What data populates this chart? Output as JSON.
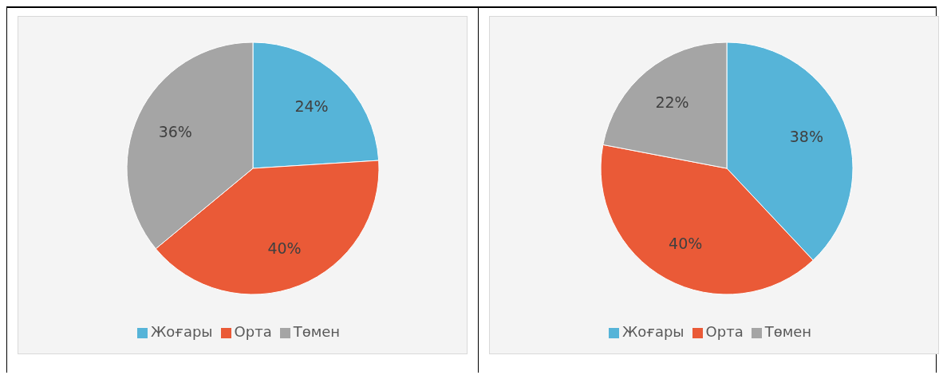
{
  "chart_data": [
    {
      "type": "pie",
      "categories": [
        "Жоғары",
        "Орта",
        "Төмен"
      ],
      "values": [
        24,
        40,
        36
      ],
      "colors": [
        "#56b4d8",
        "#ea5a37",
        "#a5a5a5"
      ],
      "value_labels": [
        "24%",
        "40%",
        "36%"
      ],
      "legend": "bottom"
    },
    {
      "type": "pie",
      "categories": [
        "Жоғары",
        "Орта",
        "Төмен"
      ],
      "values": [
        38,
        40,
        22
      ],
      "colors": [
        "#56b4d8",
        "#ea5a37",
        "#a5a5a5"
      ],
      "value_labels": [
        "38%",
        "40%",
        "22%"
      ],
      "legend": "bottom"
    }
  ]
}
